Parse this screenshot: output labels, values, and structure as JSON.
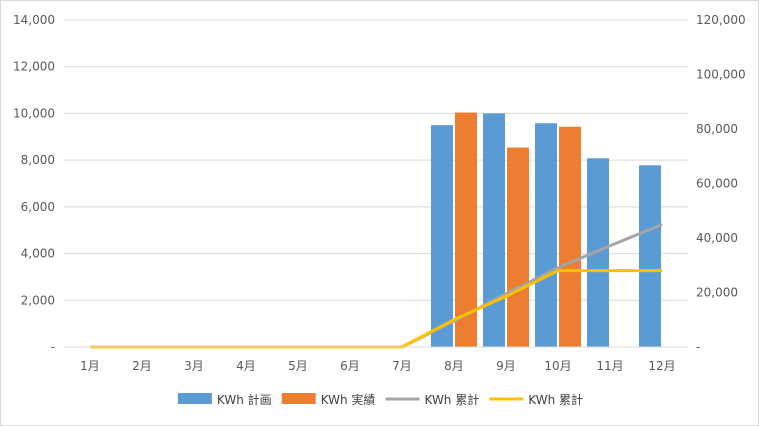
{
  "chart_data": {
    "type": "bar",
    "categories": [
      "1月",
      "2月",
      "3月",
      "4月",
      "5月",
      "6月",
      "7月",
      "8月",
      "9月",
      "10月",
      "11月",
      "12月"
    ],
    "series": [
      {
        "name": "KWh 計画",
        "kind": "bar",
        "axis": "left",
        "color": "#5b9bd5",
        "values": [
          0,
          0,
          0,
          0,
          0,
          0,
          0,
          9500,
          10000,
          9580,
          8080,
          7780
        ]
      },
      {
        "name": "KWh 実績",
        "kind": "bar",
        "axis": "left",
        "color": "#ed7d31",
        "values": [
          0,
          0,
          0,
          0,
          0,
          0,
          0,
          10040,
          8540,
          9430,
          null,
          null
        ]
      },
      {
        "name": "KWh 累計",
        "kind": "line",
        "axis": "right",
        "color": "#a5a5a5",
        "values": [
          0,
          0,
          0,
          0,
          0,
          0,
          0,
          9500,
          19500,
          29080,
          37160,
          44940
        ]
      },
      {
        "name": "KWh 累計",
        "kind": "line",
        "axis": "right",
        "color": "#ffc000",
        "values": [
          0,
          0,
          0,
          0,
          0,
          0,
          0,
          10040,
          18580,
          28010,
          28010,
          28010
        ]
      }
    ],
    "y_left": {
      "min": 0,
      "max": 14000,
      "step": 2000,
      "tick_labels": [
        "-",
        "2,000",
        "4,000",
        "6,000",
        "8,000",
        "10,000",
        "12,000",
        "14,000"
      ]
    },
    "y_right": {
      "min": 0,
      "max": 120000,
      "step": 20000,
      "tick_labels": [
        "-",
        "20,000",
        "40,000",
        "60,000",
        "80,000",
        "100,000",
        "120,000"
      ]
    },
    "grid": true,
    "legend": "bottom-center"
  }
}
